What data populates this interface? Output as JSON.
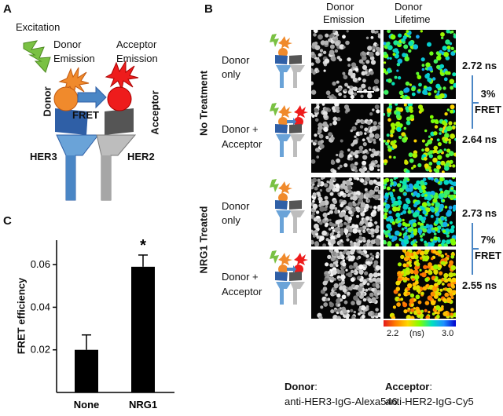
{
  "panels": {
    "a": "A",
    "b": "B",
    "c": "C"
  },
  "panel_a": {
    "excitation": "Excitation",
    "donor_emission_line1": "Donor",
    "donor_emission_line2": "Emission",
    "acceptor_emission_line1": "Acceptor",
    "acceptor_emission_line2": "Emission",
    "fret": "FRET",
    "donor": "Donor",
    "acceptor": "Acceptor",
    "her3": "HER3",
    "her2": "HER2"
  },
  "panel_b": {
    "col_header_emission_line1": "Donor",
    "col_header_emission_line2": "Emission",
    "col_header_lifetime_line1": "Donor",
    "col_header_lifetime_line2": "Lifetime",
    "group_no_treatment": "No Treatment",
    "group_nrg1": "NRG1 Treated",
    "rows": [
      {
        "label_line1": "Donor",
        "label_line2": "only",
        "lifetime": "2.72 ns"
      },
      {
        "label_line1": "Donor +",
        "label_line2": "Acceptor",
        "lifetime": "2.64 ns"
      },
      {
        "label_line1": "Donor",
        "label_line2": "only",
        "lifetime": "2.73 ns"
      },
      {
        "label_line1": "Donor +",
        "label_line2": "Acceptor",
        "lifetime": "2.55 ns"
      }
    ],
    "fret_no_treatment_pct": "3%",
    "fret_no_treatment_label": "FRET",
    "fret_nrg1_pct": "7%",
    "fret_nrg1_label": "FRET",
    "colorbar_min": "2.2",
    "colorbar_unit": "(ns)",
    "colorbar_max": "3.0"
  },
  "footer": {
    "donor_title": "Donor",
    "donor_colon": ":",
    "donor_desc": "anti-HER3-IgG-Alexa546",
    "acceptor_title": "Acceptor",
    "acceptor_colon": ":",
    "acceptor_desc": "anti-HER2-IgG-Cy5"
  },
  "chart_data": {
    "type": "bar",
    "categories": [
      "None",
      "NRG1"
    ],
    "values": [
      0.02,
      0.059
    ],
    "errors": [
      0.007,
      0.0055
    ],
    "ylabel": "FRET efficiency",
    "xlabel": "",
    "ylim": [
      0,
      0.07
    ],
    "yticks": [
      "0.02",
      "0.04",
      "0.06"
    ],
    "ytick_values": [
      0.02,
      0.04,
      0.06
    ],
    "annotation": "*",
    "bar_color": "#000000",
    "grid": false
  },
  "colors": {
    "donor_orange": "#f08a2c",
    "acceptor_red": "#ee1c1c",
    "her3_blue": "#4a86c5",
    "her2_gray": "#a6a6a6",
    "excitation_green": "#7ac143"
  }
}
